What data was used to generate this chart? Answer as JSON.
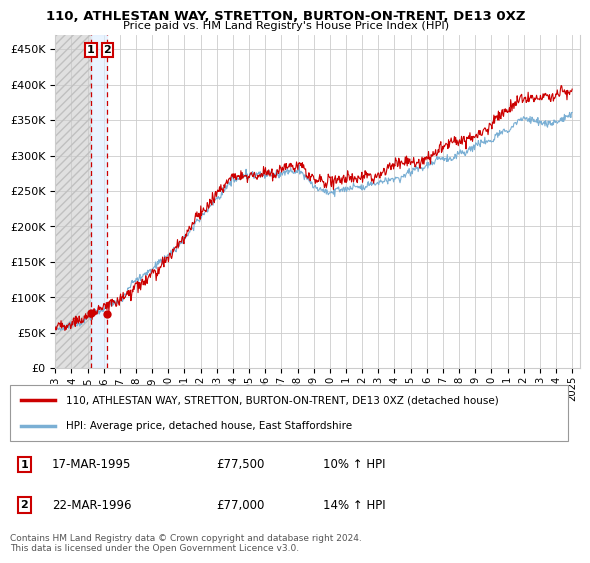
{
  "title": "110, ATHLESTAN WAY, STRETTON, BURTON-ON-TRENT, DE13 0XZ",
  "subtitle": "Price paid vs. HM Land Registry's House Price Index (HPI)",
  "ylabel_ticks": [
    "£0",
    "£50K",
    "£100K",
    "£150K",
    "£200K",
    "£250K",
    "£300K",
    "£350K",
    "£400K",
    "£450K"
  ],
  "ytick_values": [
    0,
    50000,
    100000,
    150000,
    200000,
    250000,
    300000,
    350000,
    400000,
    450000
  ],
  "ylim": [
    0,
    470000
  ],
  "xlim_start": 1993.0,
  "xlim_end": 2025.5,
  "sale1_x": 1995.21,
  "sale1_y": 77500,
  "sale2_x": 1996.23,
  "sale2_y": 77000,
  "sale1_label": "17-MAR-1995",
  "sale1_price": "£77,500",
  "sale1_hpi": "10% ↑ HPI",
  "sale2_label": "22-MAR-1996",
  "sale2_price": "£77,000",
  "sale2_hpi": "14% ↑ HPI",
  "hatch_end_x": 1995.21,
  "line1_color": "#cc0000",
  "line2_color": "#7aafd4",
  "dot_color": "#cc0000",
  "vline_color": "#cc0000",
  "legend_line1": "110, ATHLESTAN WAY, STRETTON, BURTON-ON-TRENT, DE13 0XZ (detached house)",
  "legend_line2": "HPI: Average price, detached house, East Staffordshire",
  "footer": "Contains HM Land Registry data © Crown copyright and database right 2024.\nThis data is licensed under the Open Government Licence v3.0.",
  "xtick_years": [
    1993,
    1994,
    1995,
    1996,
    1997,
    1998,
    1999,
    2000,
    2001,
    2002,
    2003,
    2004,
    2005,
    2006,
    2007,
    2008,
    2009,
    2010,
    2011,
    2012,
    2013,
    2014,
    2015,
    2016,
    2017,
    2018,
    2019,
    2020,
    2021,
    2022,
    2023,
    2024,
    2025
  ]
}
